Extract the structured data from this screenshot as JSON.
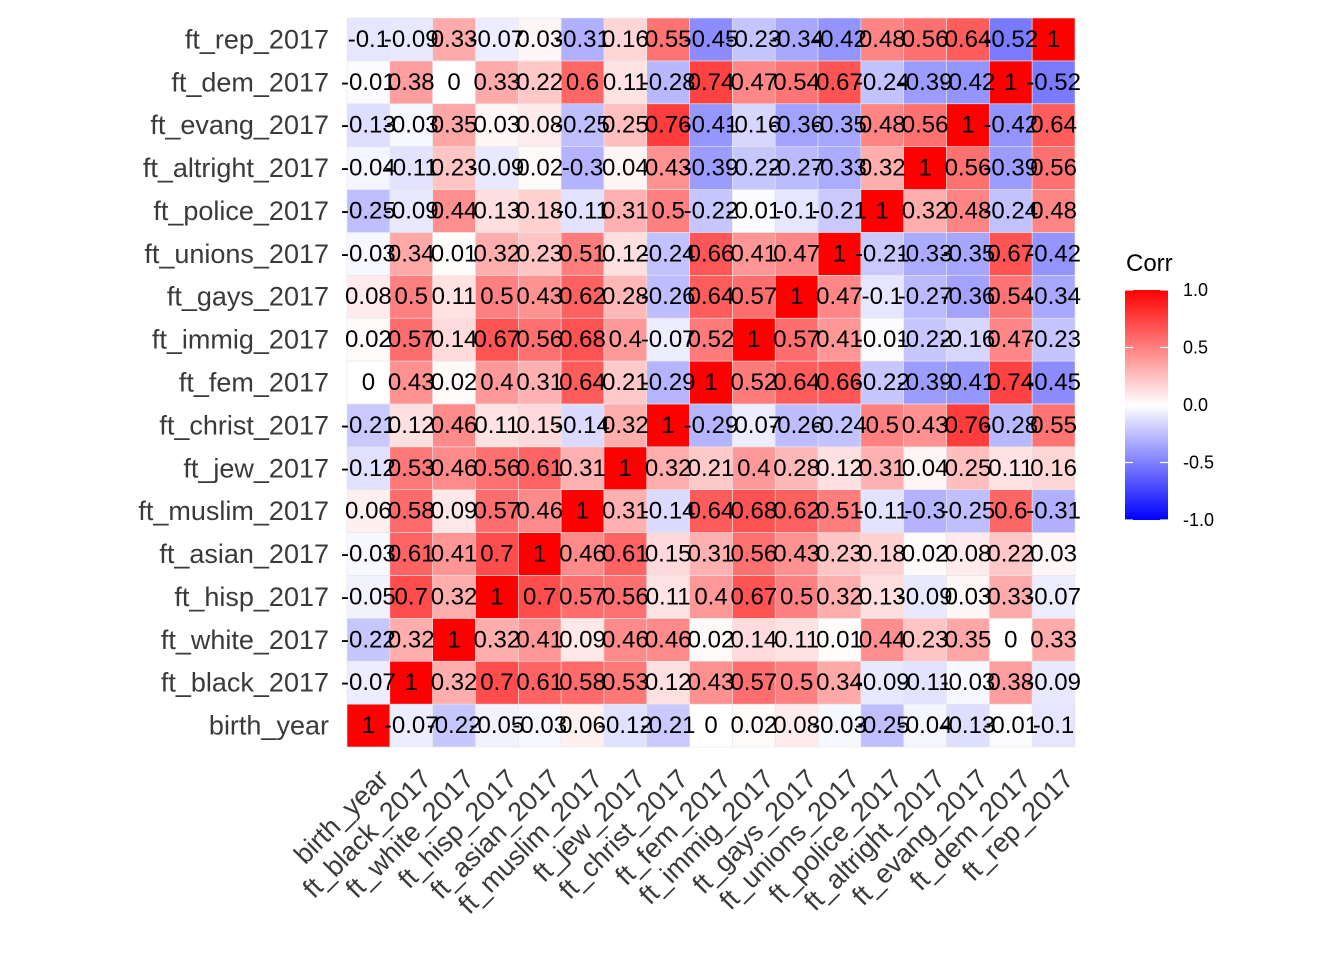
{
  "chart_data": {
    "type": "heatmap",
    "title": "",
    "xlabel": "",
    "ylabel": "",
    "variables": [
      "birth_year",
      "ft_black_2017",
      "ft_white_2017",
      "ft_hisp_2017",
      "ft_asian_2017",
      "ft_muslim_2017",
      "ft_jew_2017",
      "ft_christ_2017",
      "ft_fem_2017",
      "ft_immig_2017",
      "ft_gays_2017",
      "ft_unions_2017",
      "ft_police_2017",
      "ft_altright_2017",
      "ft_evang_2017",
      "ft_dem_2017",
      "ft_rep_2017"
    ],
    "matrix": [
      [
        1,
        -0.07,
        -0.22,
        -0.05,
        -0.03,
        0.06,
        -0.12,
        -0.21,
        0,
        0.02,
        0.08,
        -0.03,
        -0.25,
        -0.04,
        -0.13,
        -0.01,
        -0.1
      ],
      [
        -0.07,
        1,
        0.32,
        0.7,
        0.61,
        0.58,
        0.53,
        0.12,
        0.43,
        0.57,
        0.5,
        0.34,
        -0.09,
        -0.11,
        -0.03,
        0.38,
        -0.09
      ],
      [
        -0.22,
        0.32,
        1,
        0.32,
        0.41,
        0.09,
        0.46,
        0.46,
        0.02,
        0.14,
        0.11,
        0.01,
        0.44,
        0.23,
        0.35,
        0,
        0.33
      ],
      [
        -0.05,
        0.7,
        0.32,
        1,
        0.7,
        0.57,
        0.56,
        0.11,
        0.4,
        0.67,
        0.5,
        0.32,
        0.13,
        -0.09,
        0.03,
        0.33,
        -0.07
      ],
      [
        -0.03,
        0.61,
        0.41,
        0.7,
        1,
        0.46,
        0.61,
        0.15,
        0.31,
        0.56,
        0.43,
        0.23,
        0.18,
        0.02,
        0.08,
        0.22,
        0.03
      ],
      [
        0.06,
        0.58,
        0.09,
        0.57,
        0.46,
        1,
        0.31,
        -0.14,
        0.64,
        0.68,
        0.62,
        0.51,
        -0.11,
        -0.3,
        -0.25,
        0.6,
        -0.31
      ],
      [
        -0.12,
        0.53,
        0.46,
        0.56,
        0.61,
        0.31,
        1,
        0.32,
        0.21,
        0.4,
        0.28,
        0.12,
        0.31,
        0.04,
        0.25,
        0.11,
        0.16
      ],
      [
        -0.21,
        0.12,
        0.46,
        0.11,
        0.15,
        -0.14,
        0.32,
        1,
        -0.29,
        -0.07,
        -0.26,
        -0.24,
        0.5,
        0.43,
        0.76,
        -0.28,
        0.55
      ],
      [
        0,
        0.43,
        0.02,
        0.4,
        0.31,
        0.64,
        0.21,
        -0.29,
        1,
        0.52,
        0.64,
        0.66,
        -0.22,
        -0.39,
        -0.41,
        0.74,
        -0.45
      ],
      [
        0.02,
        0.57,
        0.14,
        0.67,
        0.56,
        0.68,
        0.4,
        -0.07,
        0.52,
        1,
        0.57,
        0.41,
        -0.01,
        -0.22,
        -0.16,
        0.47,
        -0.23
      ],
      [
        0.08,
        0.5,
        0.11,
        0.5,
        0.43,
        0.62,
        0.28,
        -0.26,
        0.64,
        0.57,
        1,
        0.47,
        -0.1,
        -0.27,
        -0.36,
        0.54,
        -0.34
      ],
      [
        -0.03,
        0.34,
        0.01,
        0.32,
        0.23,
        0.51,
        0.12,
        -0.24,
        0.66,
        0.41,
        0.47,
        1,
        -0.21,
        -0.33,
        -0.35,
        0.67,
        -0.42
      ],
      [
        -0.25,
        -0.09,
        0.44,
        0.13,
        0.18,
        -0.11,
        0.31,
        0.5,
        -0.22,
        -0.01,
        -0.1,
        -0.21,
        1,
        0.32,
        0.48,
        -0.24,
        0.48
      ],
      [
        -0.04,
        -0.11,
        0.23,
        -0.09,
        0.02,
        -0.3,
        0.04,
        0.43,
        -0.39,
        -0.22,
        -0.27,
        -0.33,
        0.32,
        1,
        0.56,
        -0.39,
        0.56
      ],
      [
        -0.13,
        -0.03,
        0.35,
        0.03,
        0.08,
        -0.25,
        0.25,
        0.76,
        -0.41,
        -0.16,
        -0.36,
        -0.35,
        0.48,
        0.56,
        1,
        -0.42,
        0.64
      ],
      [
        -0.01,
        0.38,
        0,
        0.33,
        0.22,
        0.6,
        0.11,
        -0.28,
        0.74,
        0.47,
        0.54,
        0.67,
        -0.24,
        -0.39,
        -0.42,
        1,
        -0.52
      ],
      [
        -0.1,
        -0.09,
        0.33,
        -0.07,
        0.03,
        -0.31,
        0.16,
        0.55,
        -0.45,
        -0.23,
        -0.34,
        -0.42,
        0.48,
        0.56,
        0.64,
        -0.52,
        1
      ]
    ],
    "color_scale": {
      "low": "#0000ff",
      "mid": "#ffffff",
      "high": "#ff0000",
      "limits": [
        -1,
        1
      ]
    },
    "legend": {
      "title": "Corr",
      "ticks": [
        "1.0",
        "0.5",
        "0.0",
        "-0.5",
        "-1.0"
      ],
      "placement": "right"
    },
    "grid": true
  }
}
